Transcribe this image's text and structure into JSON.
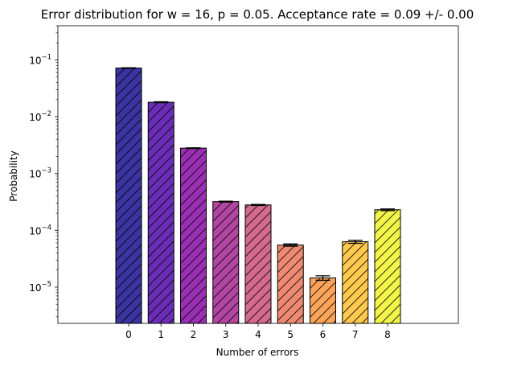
{
  "chart_data": {
    "type": "bar",
    "title": "Error distribution for w = 16, p = 0.05. Acceptance rate = 0.09 +/- 0.00",
    "xlabel": "Number of errors",
    "ylabel": "Probability",
    "yscale": "log",
    "ylim": [
      2.3e-06,
      0.4
    ],
    "categories": [
      "0",
      "1",
      "2",
      "3",
      "4",
      "5",
      "6",
      "7",
      "8"
    ],
    "values": [
      0.072,
      0.018,
      0.0028,
      0.00032,
      0.00028,
      5.5e-05,
      1.45e-05,
      6.3e-05,
      0.00023
    ],
    "errors": [
      0.0008,
      0.0003,
      4e-05,
      6e-06,
      6e-06,
      2.5e-06,
      1.3e-06,
      4e-06,
      8e-06
    ],
    "colors": [
      "#0d0887",
      "#5302a3",
      "#8b0aa5",
      "#b83289",
      "#db5c68",
      "#f48849",
      "#febd2a",
      "#f0f921",
      "#f0f921"
    ],
    "bar_fill_colors": [
      "#3a35a0",
      "#6a2eb6",
      "#9a2fb4",
      "#b346a1",
      "#d46a8d",
      "#ee8a72",
      "#fca45a",
      "#fdc94e",
      "#f3f54a"
    ],
    "hatch": "/",
    "ytick_labels": [
      {
        "base": "10",
        "exp": "−5",
        "value": 1e-05
      },
      {
        "base": "10",
        "exp": "−4",
        "value": 0.0001
      },
      {
        "base": "10",
        "exp": "−3",
        "value": 0.001
      },
      {
        "base": "10",
        "exp": "−2",
        "value": 0.01
      },
      {
        "base": "10",
        "exp": "−1",
        "value": 0.1
      }
    ],
    "grid": false,
    "legend": "none"
  }
}
